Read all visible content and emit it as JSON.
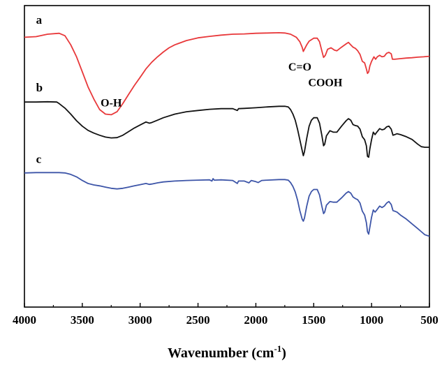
{
  "chart_data": {
    "type": "line",
    "title": "",
    "xlabel": "Wavenumber",
    "xlabel_unit_base": "cm",
    "xlabel_unit_exp": "-1",
    "ylabel": "",
    "xlim": [
      4000,
      500
    ],
    "ylim": [
      0,
      1
    ],
    "x_reversed": true,
    "grid": false,
    "x_ticks": [
      4000,
      3500,
      3000,
      2500,
      2000,
      1500,
      1000,
      500
    ],
    "x_tick_labels": [
      "4000",
      "3500",
      "3000",
      "2500",
      "2000",
      "1500",
      "1000",
      "500"
    ],
    "series": [
      {
        "name": "a",
        "color": "#e8383a",
        "points": [
          [
            4000,
            0.895
          ],
          [
            3900,
            0.897
          ],
          [
            3800,
            0.905
          ],
          [
            3700,
            0.908
          ],
          [
            3650,
            0.9
          ],
          [
            3600,
            0.87
          ],
          [
            3550,
            0.83
          ],
          [
            3500,
            0.78
          ],
          [
            3450,
            0.73
          ],
          [
            3400,
            0.69
          ],
          [
            3350,
            0.655
          ],
          [
            3300,
            0.64
          ],
          [
            3250,
            0.638
          ],
          [
            3200,
            0.648
          ],
          [
            3150,
            0.675
          ],
          [
            3100,
            0.705
          ],
          [
            3050,
            0.735
          ],
          [
            3000,
            0.762
          ],
          [
            2950,
            0.79
          ],
          [
            2900,
            0.812
          ],
          [
            2850,
            0.83
          ],
          [
            2800,
            0.846
          ],
          [
            2750,
            0.86
          ],
          [
            2700,
            0.87
          ],
          [
            2600,
            0.884
          ],
          [
            2500,
            0.893
          ],
          [
            2400,
            0.898
          ],
          [
            2300,
            0.902
          ],
          [
            2200,
            0.905
          ],
          [
            2100,
            0.906
          ],
          [
            2000,
            0.908
          ],
          [
            1900,
            0.909
          ],
          [
            1800,
            0.91
          ],
          [
            1750,
            0.909
          ],
          [
            1700,
            0.905
          ],
          [
            1650,
            0.895
          ],
          [
            1620,
            0.88
          ],
          [
            1600,
            0.862
          ],
          [
            1590,
            0.848
          ],
          [
            1580,
            0.855
          ],
          [
            1560,
            0.87
          ],
          [
            1540,
            0.882
          ],
          [
            1500,
            0.892
          ],
          [
            1470,
            0.892
          ],
          [
            1450,
            0.88
          ],
          [
            1430,
            0.85
          ],
          [
            1415,
            0.828
          ],
          [
            1400,
            0.835
          ],
          [
            1380,
            0.855
          ],
          [
            1350,
            0.86
          ],
          [
            1320,
            0.852
          ],
          [
            1300,
            0.85
          ],
          [
            1260,
            0.862
          ],
          [
            1220,
            0.873
          ],
          [
            1200,
            0.878
          ],
          [
            1180,
            0.87
          ],
          [
            1160,
            0.862
          ],
          [
            1140,
            0.858
          ],
          [
            1120,
            0.85
          ],
          [
            1100,
            0.838
          ],
          [
            1080,
            0.815
          ],
          [
            1060,
            0.81
          ],
          [
            1045,
            0.79
          ],
          [
            1035,
            0.775
          ],
          [
            1025,
            0.78
          ],
          [
            1015,
            0.8
          ],
          [
            1000,
            0.815
          ],
          [
            980,
            0.83
          ],
          [
            965,
            0.822
          ],
          [
            950,
            0.83
          ],
          [
            930,
            0.835
          ],
          [
            910,
            0.83
          ],
          [
            890,
            0.832
          ],
          [
            870,
            0.842
          ],
          [
            850,
            0.845
          ],
          [
            830,
            0.84
          ],
          [
            820,
            0.822
          ],
          [
            800,
            0.822
          ],
          [
            750,
            0.824
          ],
          [
            700,
            0.826
          ],
          [
            650,
            0.827
          ],
          [
            600,
            0.829
          ],
          [
            550,
            0.83
          ],
          [
            500,
            0.832
          ]
        ]
      },
      {
        "name": "b",
        "color": "#111111",
        "points": [
          [
            4000,
            0.68
          ],
          [
            3900,
            0.68
          ],
          [
            3800,
            0.681
          ],
          [
            3720,
            0.68
          ],
          [
            3700,
            0.675
          ],
          [
            3650,
            0.66
          ],
          [
            3600,
            0.64
          ],
          [
            3550,
            0.618
          ],
          [
            3500,
            0.6
          ],
          [
            3450,
            0.586
          ],
          [
            3400,
            0.577
          ],
          [
            3350,
            0.57
          ],
          [
            3300,
            0.564
          ],
          [
            3250,
            0.561
          ],
          [
            3200,
            0.562
          ],
          [
            3150,
            0.57
          ],
          [
            3100,
            0.582
          ],
          [
            3050,
            0.594
          ],
          [
            3000,
            0.604
          ],
          [
            2950,
            0.614
          ],
          [
            2920,
            0.61
          ],
          [
            2900,
            0.612
          ],
          [
            2850,
            0.62
          ],
          [
            2800,
            0.628
          ],
          [
            2700,
            0.64
          ],
          [
            2600,
            0.648
          ],
          [
            2500,
            0.652
          ],
          [
            2400,
            0.656
          ],
          [
            2300,
            0.658
          ],
          [
            2200,
            0.658
          ],
          [
            2160,
            0.652
          ],
          [
            2150,
            0.658
          ],
          [
            2100,
            0.659
          ],
          [
            2000,
            0.661
          ],
          [
            1900,
            0.664
          ],
          [
            1800,
            0.666
          ],
          [
            1750,
            0.666
          ],
          [
            1720,
            0.664
          ],
          [
            1700,
            0.655
          ],
          [
            1680,
            0.64
          ],
          [
            1660,
            0.62
          ],
          [
            1640,
            0.59
          ],
          [
            1620,
            0.555
          ],
          [
            1600,
            0.52
          ],
          [
            1590,
            0.502
          ],
          [
            1580,
            0.515
          ],
          [
            1560,
            0.56
          ],
          [
            1540,
            0.6
          ],
          [
            1520,
            0.62
          ],
          [
            1500,
            0.628
          ],
          [
            1470,
            0.628
          ],
          [
            1450,
            0.61
          ],
          [
            1430,
            0.57
          ],
          [
            1415,
            0.535
          ],
          [
            1405,
            0.54
          ],
          [
            1390,
            0.568
          ],
          [
            1360,
            0.585
          ],
          [
            1330,
            0.58
          ],
          [
            1300,
            0.58
          ],
          [
            1260,
            0.6
          ],
          [
            1220,
            0.618
          ],
          [
            1200,
            0.625
          ],
          [
            1180,
            0.62
          ],
          [
            1160,
            0.605
          ],
          [
            1140,
            0.602
          ],
          [
            1120,
            0.6
          ],
          [
            1100,
            0.59
          ],
          [
            1080,
            0.565
          ],
          [
            1060,
            0.555
          ],
          [
            1045,
            0.535
          ],
          [
            1035,
            0.5
          ],
          [
            1025,
            0.497
          ],
          [
            1015,
            0.525
          ],
          [
            1000,
            0.555
          ],
          [
            985,
            0.58
          ],
          [
            970,
            0.572
          ],
          [
            955,
            0.58
          ],
          [
            930,
            0.592
          ],
          [
            910,
            0.588
          ],
          [
            890,
            0.59
          ],
          [
            870,
            0.598
          ],
          [
            850,
            0.6
          ],
          [
            830,
            0.59
          ],
          [
            815,
            0.57
          ],
          [
            800,
            0.572
          ],
          [
            780,
            0.575
          ],
          [
            750,
            0.572
          ],
          [
            700,
            0.565
          ],
          [
            650,
            0.556
          ],
          [
            600,
            0.54
          ],
          [
            570,
            0.532
          ],
          [
            540,
            0.53
          ],
          [
            500,
            0.53
          ]
        ]
      },
      {
        "name": "c",
        "color": "#3d55a8",
        "points": [
          [
            4000,
            0.445
          ],
          [
            3900,
            0.446
          ],
          [
            3800,
            0.446
          ],
          [
            3700,
            0.446
          ],
          [
            3650,
            0.445
          ],
          [
            3600,
            0.44
          ],
          [
            3550,
            0.432
          ],
          [
            3500,
            0.42
          ],
          [
            3450,
            0.41
          ],
          [
            3400,
            0.405
          ],
          [
            3350,
            0.402
          ],
          [
            3300,
            0.398
          ],
          [
            3250,
            0.394
          ],
          [
            3200,
            0.392
          ],
          [
            3150,
            0.394
          ],
          [
            3100,
            0.398
          ],
          [
            3050,
            0.402
          ],
          [
            3000,
            0.406
          ],
          [
            2950,
            0.41
          ],
          [
            2920,
            0.407
          ],
          [
            2900,
            0.408
          ],
          [
            2850,
            0.412
          ],
          [
            2800,
            0.415
          ],
          [
            2700,
            0.418
          ],
          [
            2600,
            0.42
          ],
          [
            2500,
            0.421
          ],
          [
            2400,
            0.422
          ],
          [
            2380,
            0.418
          ],
          [
            2370,
            0.426
          ],
          [
            2360,
            0.421
          ],
          [
            2300,
            0.422
          ],
          [
            2200,
            0.42
          ],
          [
            2160,
            0.41
          ],
          [
            2150,
            0.418
          ],
          [
            2100,
            0.418
          ],
          [
            2060,
            0.412
          ],
          [
            2040,
            0.42
          ],
          [
            2000,
            0.416
          ],
          [
            1980,
            0.413
          ],
          [
            1950,
            0.42
          ],
          [
            1900,
            0.421
          ],
          [
            1800,
            0.423
          ],
          [
            1750,
            0.423
          ],
          [
            1720,
            0.421
          ],
          [
            1700,
            0.413
          ],
          [
            1680,
            0.4
          ],
          [
            1660,
            0.382
          ],
          [
            1640,
            0.355
          ],
          [
            1620,
            0.32
          ],
          [
            1600,
            0.292
          ],
          [
            1590,
            0.285
          ],
          [
            1580,
            0.295
          ],
          [
            1560,
            0.335
          ],
          [
            1540,
            0.368
          ],
          [
            1520,
            0.383
          ],
          [
            1500,
            0.39
          ],
          [
            1470,
            0.39
          ],
          [
            1450,
            0.372
          ],
          [
            1430,
            0.335
          ],
          [
            1415,
            0.31
          ],
          [
            1405,
            0.315
          ],
          [
            1390,
            0.338
          ],
          [
            1360,
            0.35
          ],
          [
            1330,
            0.348
          ],
          [
            1300,
            0.348
          ],
          [
            1260,
            0.362
          ],
          [
            1220,
            0.378
          ],
          [
            1200,
            0.383
          ],
          [
            1180,
            0.378
          ],
          [
            1160,
            0.365
          ],
          [
            1140,
            0.36
          ],
          [
            1120,
            0.356
          ],
          [
            1100,
            0.345
          ],
          [
            1080,
            0.318
          ],
          [
            1060,
            0.305
          ],
          [
            1045,
            0.28
          ],
          [
            1035,
            0.25
          ],
          [
            1025,
            0.242
          ],
          [
            1015,
            0.265
          ],
          [
            1000,
            0.298
          ],
          [
            985,
            0.322
          ],
          [
            970,
            0.315
          ],
          [
            955,
            0.322
          ],
          [
            930,
            0.335
          ],
          [
            910,
            0.33
          ],
          [
            890,
            0.335
          ],
          [
            870,
            0.345
          ],
          [
            850,
            0.35
          ],
          [
            830,
            0.34
          ],
          [
            815,
            0.32
          ],
          [
            800,
            0.318
          ],
          [
            780,
            0.315
          ],
          [
            750,
            0.305
          ],
          [
            700,
            0.292
          ],
          [
            650,
            0.276
          ],
          [
            600,
            0.26
          ],
          [
            570,
            0.25
          ],
          [
            540,
            0.24
          ],
          [
            500,
            0.235
          ]
        ]
      }
    ],
    "series_labels": [
      {
        "series": "a",
        "text": "a",
        "x": 3900,
        "y": 0.94
      },
      {
        "series": "b",
        "text": "b",
        "x": 3900,
        "y": 0.715
      },
      {
        "series": "c",
        "text": "c",
        "x": 3900,
        "y": 0.478
      }
    ],
    "annotations": [
      {
        "text": "O-H",
        "x": 3250,
        "y": 0.665
      },
      {
        "text": "C=O",
        "x": 1620,
        "y": 0.785
      },
      {
        "text": "COOH",
        "x": 1400,
        "y": 0.733
      }
    ]
  }
}
